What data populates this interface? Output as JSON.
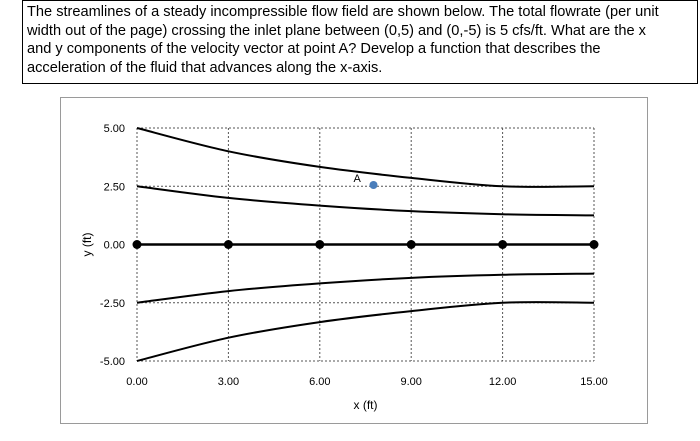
{
  "question": {
    "text": "The streamlines of a steady incompressible flow field are shown below.  The total flowrate (per unit\nwidth out of the page) crossing the inlet plane between (0,5) and (0,-5) is 5 cfs/ft.  What are the x\nand y components of the velocity vector at point A?  Develop a function that describes the\nacceleration of the fluid that advances along the x-axis."
  },
  "chart_data": {
    "type": "line",
    "xlabel": "x (ft)",
    "ylabel": "y (ft)",
    "xlim": [
      0,
      15
    ],
    "ylim": [
      -5,
      5
    ],
    "x_ticks": [
      "0.00",
      "3.00",
      "6.00",
      "9.00",
      "12.00",
      "15.00"
    ],
    "y_ticks": [
      "5.00",
      "2.50",
      "0.00",
      "-2.50",
      "-5.00"
    ],
    "grid": "dashed",
    "series": [
      {
        "x": [
          0,
          3,
          6,
          9,
          12,
          15
        ],
        "y": [
          5.0,
          4.0,
          3.33,
          2.86,
          2.5,
          2.5
        ]
      },
      {
        "x": [
          0,
          3,
          6,
          9,
          12,
          15
        ],
        "y": [
          2.5,
          2.0,
          1.67,
          1.43,
          1.3,
          1.25
        ]
      },
      {
        "x": [
          0,
          3,
          6,
          9,
          12,
          15
        ],
        "y": [
          0,
          0,
          0,
          0,
          0,
          0
        ],
        "markers": true
      },
      {
        "x": [
          0,
          3,
          6,
          9,
          12,
          15
        ],
        "y": [
          -2.5,
          -2.0,
          -1.67,
          -1.43,
          -1.3,
          -1.25
        ]
      },
      {
        "x": [
          0,
          3,
          6,
          9,
          12,
          15
        ],
        "y": [
          -5.0,
          -4.0,
          -3.33,
          -2.86,
          -2.5,
          -2.5
        ]
      }
    ],
    "annotations": [
      {
        "label": "A",
        "x": 7.5,
        "y": 2.5,
        "color": "#4a7ebb"
      }
    ],
    "colors": {
      "line": "#000000",
      "grid": "#555555",
      "point_a": "#4a7ebb"
    }
  }
}
